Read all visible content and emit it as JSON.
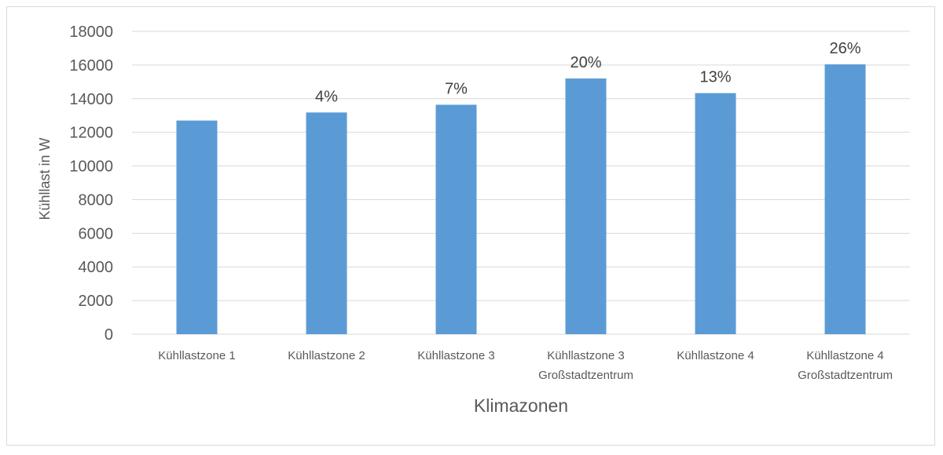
{
  "chart_data": {
    "type": "bar",
    "categories": [
      [
        "Kühllastzone 1"
      ],
      [
        "Kühllastzone 2"
      ],
      [
        "Kühllastzone 3"
      ],
      [
        "Kühllastzone 3",
        "Großstadtzentrum"
      ],
      [
        "Kühllastzone 4"
      ],
      [
        "Kühllastzone 4",
        "Großstadtzentrum"
      ]
    ],
    "values": [
      12700,
      13180,
      13640,
      15200,
      14330,
      16040
    ],
    "data_labels": [
      "",
      "4%",
      "7%",
      "20%",
      "13%",
      "26%"
    ],
    "xlabel": "Klimazonen",
    "ylabel": "Kühllast in W",
    "ylim": [
      0,
      18000
    ],
    "yticks": [
      0,
      2000,
      4000,
      6000,
      8000,
      10000,
      12000,
      14000,
      16000,
      18000
    ],
    "grid": true,
    "legend": "none",
    "bar_color": "#5b9bd5",
    "grid_color": "#d9d9d9"
  }
}
